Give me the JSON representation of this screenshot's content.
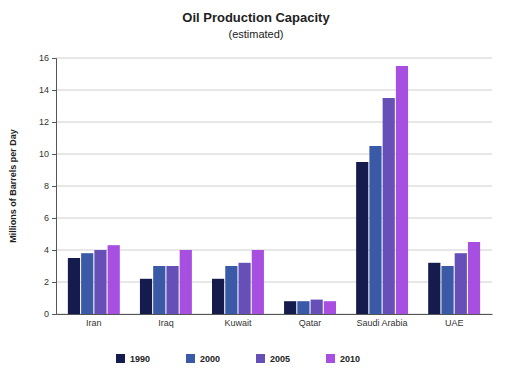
{
  "chart_data": {
    "type": "bar",
    "title": "Oil Production Capacity",
    "subtitle": "(estimated)",
    "y_label": "Millions of Barrels per Day",
    "categories": [
      "Iran",
      "Iraq",
      "Kuwait",
      "Qatar",
      "Saudi Arabia",
      "UAE"
    ],
    "series": [
      {
        "name": "1990",
        "color": "#161b4d",
        "values": [
          3.5,
          2.2,
          2.2,
          0.8,
          9.5,
          3.2
        ]
      },
      {
        "name": "2000",
        "color": "#3a5aa8",
        "values": [
          3.8,
          3.0,
          3.0,
          0.8,
          10.5,
          3.0
        ]
      },
      {
        "name": "2005",
        "color": "#6650b8",
        "values": [
          4.0,
          3.0,
          3.2,
          0.9,
          13.5,
          3.8
        ]
      },
      {
        "name": "2010",
        "color": "#a64fe0",
        "values": [
          4.3,
          4.0,
          4.0,
          0.8,
          15.5,
          4.5
        ]
      }
    ],
    "ylim": [
      0,
      16
    ],
    "yticks": [
      0,
      2,
      4,
      6,
      8,
      10,
      12,
      14,
      16
    ],
    "grid": true,
    "legend": "bottom"
  }
}
